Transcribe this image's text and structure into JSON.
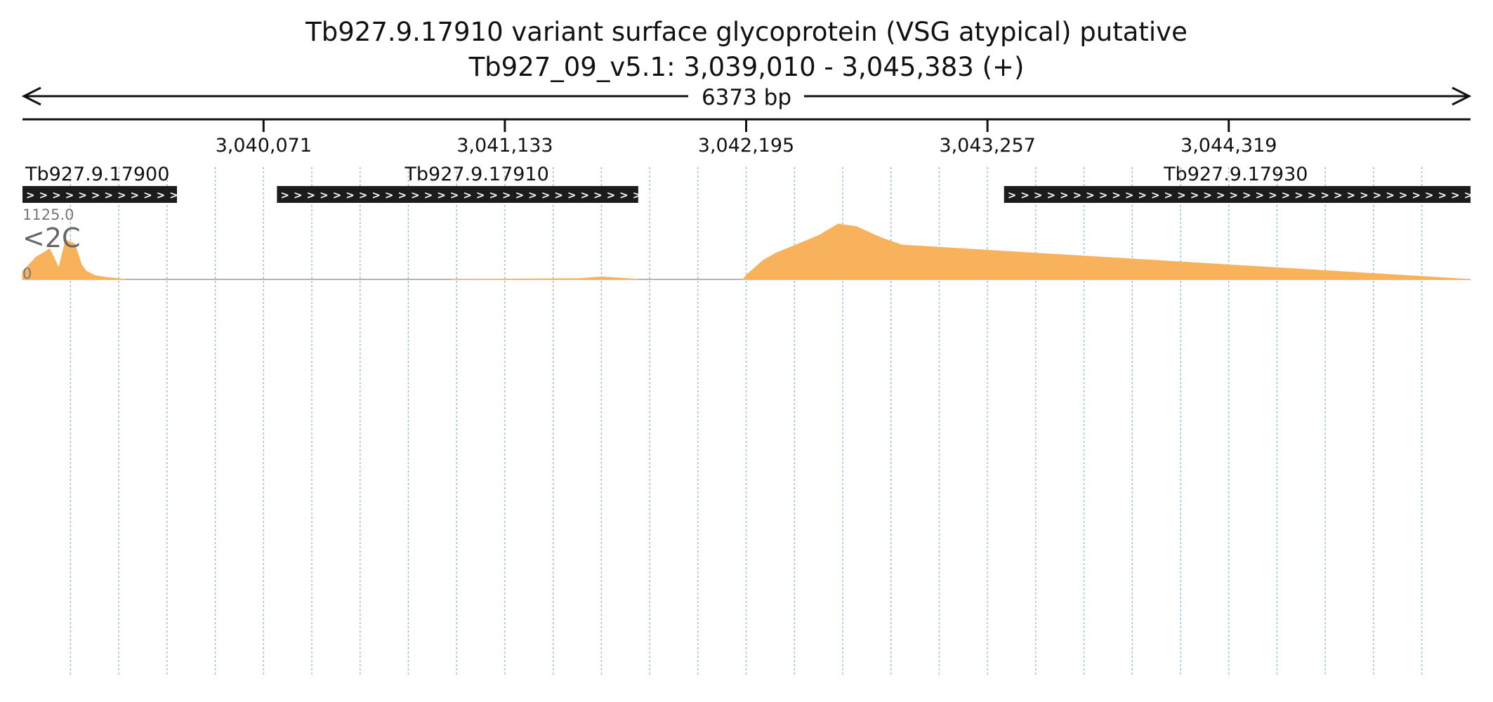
{
  "title_line1": "Tb927.9.17910  variant surface glycoprotein (VSG  atypical)  putative",
  "title_line2": "Tb927_09_v5.1: 3,039,010 - 3,045,383 (+)",
  "span_label": "6373 bp",
  "colors": {
    "<2C": "#f9b25c",
    "G1": "#c08ec6",
    "S": "#7dcd80",
    "G2M": "#7fb7e3",
    ">4C": "#f29bc4",
    "Lib": "#e3da6c",
    "clip": "#d8384a",
    "gene": "#1c1c1c",
    "grid": "#8fb8de"
  },
  "chart_data": {
    "type": "area",
    "region": {
      "start": 3039010,
      "end": 3045383
    },
    "x_ticks": [
      {
        "pos": 3040071,
        "label": "3,040,071"
      },
      {
        "pos": 3041133,
        "label": "3,041,133"
      },
      {
        "pos": 3042195,
        "label": "3,042,195"
      },
      {
        "pos": 3043257,
        "label": "3,043,257"
      },
      {
        "pos": 3044319,
        "label": "3,044,319"
      }
    ],
    "ylim": [
      0,
      1125
    ],
    "y_max_label": "1125.0",
    "y_min_label": "0",
    "genes": [
      {
        "name": "Tb927.9.17900",
        "start": 3039010,
        "end": 3039690,
        "label_pos": 3039010,
        "label_anchor": "start"
      },
      {
        "name": "Tb927.9.17910",
        "start": 3040130,
        "end": 3041720,
        "label_pos": 3041010,
        "label_anchor": "middle"
      },
      {
        "name": "Tb927.9.17930",
        "start": 3043330,
        "end": 3045383,
        "label_pos": 3044350,
        "label_anchor": "middle"
      }
    ],
    "tracks": [
      {
        "name": "<2C",
        "segments": [
          {
            "x": [
              3039010,
              3039070,
              3039130,
              3039170,
              3039200,
              3039240,
              3039270,
              3039290,
              3039330,
              3039380,
              3039430,
              3039460
            ],
            "y": [
              120,
              350,
              480,
              180,
              620,
              560,
              230,
              130,
              60,
              30,
              12,
              0
            ]
          },
          {
            "x": [
              3040900,
              3041150,
              3041460,
              3041560,
              3041720
            ],
            "y": [
              0,
              6,
              12,
              40,
              0
            ]
          },
          {
            "x": [
              3042180,
              3042200,
              3042270,
              3042330,
              3042400,
              3042520,
              3042600,
              3042680,
              3042760,
              3042800,
              3042880,
              3542940
            ],
            "y": [
              0,
              80,
              300,
              420,
              520,
              700,
              870,
              830,
              700,
              640,
              540,
              0
            ]
          }
        ]
      }
    ]
  }
}
